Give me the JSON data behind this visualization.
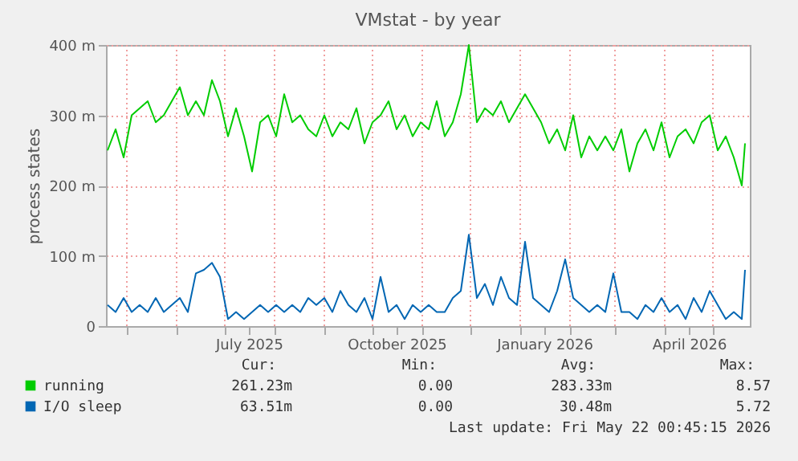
{
  "chart_data": {
    "type": "line",
    "title": "VMstat - by year",
    "ylabel": "process states",
    "x": [
      "2025-04-19",
      "2025-04-24",
      "2025-04-29",
      "2025-05-04",
      "2025-05-09",
      "2025-05-14",
      "2025-05-19",
      "2025-05-24",
      "2025-05-29",
      "2025-06-03",
      "2025-06-08",
      "2025-06-13",
      "2025-06-18",
      "2025-06-23",
      "2025-06-28",
      "2025-07-03",
      "2025-07-08",
      "2025-07-13",
      "2025-07-18",
      "2025-07-23",
      "2025-07-28",
      "2025-08-02",
      "2025-08-07",
      "2025-08-12",
      "2025-08-17",
      "2025-08-22",
      "2025-08-27",
      "2025-09-01",
      "2025-09-06",
      "2025-09-11",
      "2025-09-16",
      "2025-09-21",
      "2025-09-26",
      "2025-10-01",
      "2025-10-06",
      "2025-10-11",
      "2025-10-16",
      "2025-10-21",
      "2025-10-26",
      "2025-10-31",
      "2025-11-05",
      "2025-11-10",
      "2025-11-15",
      "2025-11-20",
      "2025-11-25",
      "2025-11-30",
      "2025-12-05",
      "2025-12-10",
      "2025-12-15",
      "2025-12-20",
      "2025-12-25",
      "2025-12-30",
      "2026-01-04",
      "2026-01-09",
      "2026-01-14",
      "2026-01-19",
      "2026-01-24",
      "2026-01-29",
      "2026-02-03",
      "2026-02-08",
      "2026-02-13",
      "2026-02-18",
      "2026-02-23",
      "2026-02-28",
      "2026-03-05",
      "2026-03-10",
      "2026-03-15",
      "2026-03-20",
      "2026-03-25",
      "2026-03-30",
      "2026-04-04",
      "2026-04-09",
      "2026-04-14",
      "2026-04-19",
      "2026-04-24",
      "2026-04-29",
      "2026-05-04",
      "2026-05-09",
      "2026-05-14",
      "2026-05-19",
      "2026-05-21"
    ],
    "series": [
      {
        "name": "running",
        "color": "#00cc00",
        "values": [
          250,
          280,
          240,
          300,
          310,
          320,
          290,
          300,
          320,
          340,
          300,
          320,
          300,
          350,
          320,
          270,
          310,
          270,
          220,
          290,
          300,
          270,
          330,
          290,
          300,
          280,
          270,
          300,
          270,
          290,
          280,
          310,
          260,
          290,
          300,
          320,
          280,
          300,
          270,
          290,
          280,
          320,
          270,
          290,
          330,
          400,
          290,
          310,
          300,
          320,
          290,
          310,
          330,
          310,
          290,
          260,
          280,
          250,
          300,
          240,
          270,
          250,
          270,
          250,
          280,
          220,
          260,
          280,
          250,
          290,
          240,
          270,
          280,
          260,
          290,
          300,
          250,
          270,
          240,
          200,
          260
        ]
      },
      {
        "name": "I/O sleep",
        "color": "#0066b3",
        "values": [
          30,
          20,
          40,
          20,
          30,
          20,
          40,
          20,
          30,
          40,
          20,
          75,
          80,
          90,
          70,
          10,
          20,
          10,
          20,
          30,
          20,
          30,
          20,
          30,
          20,
          40,
          30,
          40,
          20,
          50,
          30,
          20,
          40,
          10,
          70,
          20,
          30,
          10,
          30,
          20,
          30,
          20,
          20,
          40,
          50,
          130,
          40,
          60,
          30,
          70,
          40,
          30,
          120,
          40,
          30,
          20,
          50,
          95,
          40,
          30,
          20,
          30,
          20,
          75,
          20,
          20,
          10,
          30,
          20,
          40,
          20,
          30,
          10,
          40,
          20,
          50,
          30,
          10,
          20,
          10,
          80
        ]
      }
    ],
    "xlim": [
      "2025-04-18",
      "2026-05-24"
    ],
    "xticks": [
      {
        "value": "2025-05-01",
        "label": null
      },
      {
        "value": "2025-06-01",
        "label": null
      },
      {
        "value": "2025-07-01",
        "label": null
      },
      {
        "value": "2025-07-16",
        "label": "July 2025"
      },
      {
        "value": "2025-08-01",
        "label": null
      },
      {
        "value": "2025-09-01",
        "label": null
      },
      {
        "value": "2025-10-01",
        "label": null
      },
      {
        "value": "2025-10-16",
        "label": "October 2025"
      },
      {
        "value": "2025-11-01",
        "label": null
      },
      {
        "value": "2025-12-01",
        "label": null
      },
      {
        "value": "2026-01-01",
        "label": null
      },
      {
        "value": "2026-01-16",
        "label": "January 2026"
      },
      {
        "value": "2026-02-01",
        "label": null
      },
      {
        "value": "2026-03-01",
        "label": null
      },
      {
        "value": "2026-04-01",
        "label": null
      },
      {
        "value": "2026-04-16",
        "label": "April 2026"
      },
      {
        "value": "2026-05-01",
        "label": null
      }
    ],
    "ylim": [
      0,
      400
    ],
    "yticks": [
      {
        "value": 0,
        "label": "0"
      },
      {
        "value": 100,
        "label": "100 m"
      },
      {
        "value": 200,
        "label": "200 m"
      },
      {
        "value": 300,
        "label": "300 m"
      },
      {
        "value": 400,
        "label": "400 m"
      }
    ],
    "grid": true,
    "legend": "bottom",
    "annotations": [
      "Cur:",
      "Min:",
      "Avg:",
      "Max:",
      "261.23m",
      "0.00",
      "283.33m",
      "8.57",
      "63.51m",
      "0.00",
      "30.48m",
      "5.72",
      "Last update: Fri May 22 00:45:15 2026"
    ]
  }
}
